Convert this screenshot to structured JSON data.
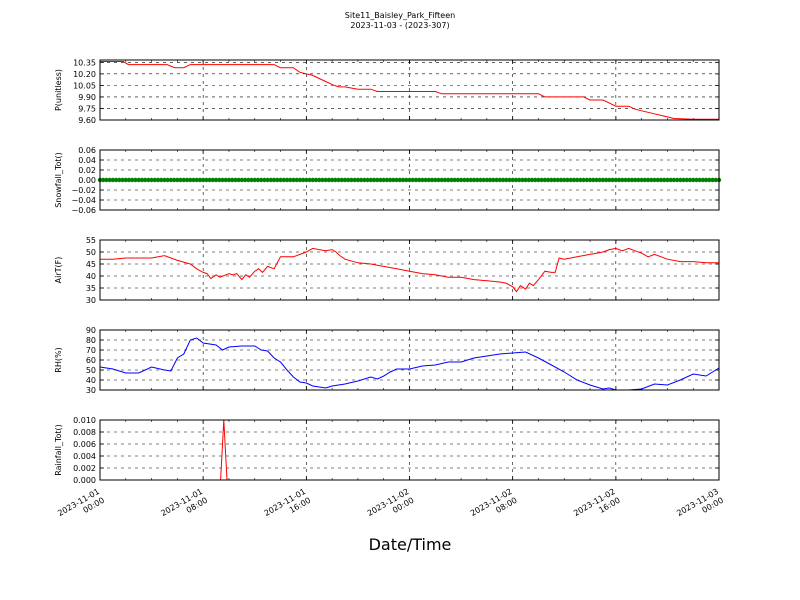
{
  "title_line1": "Site11_Baisley_Park_Fifteen",
  "title_line2": "2023-11-03 - (2023-307)",
  "xlabel": "Date/Time",
  "x_ticks": [
    {
      "x": 0,
      "label": [
        "2023-11-01",
        "00:00"
      ]
    },
    {
      "x": 8,
      "label": [
        "2023-11-01",
        "08:00"
      ]
    },
    {
      "x": 16,
      "label": [
        "2023-11-01",
        "16:00"
      ]
    },
    {
      "x": 24,
      "label": [
        "2023-11-02",
        "00:00"
      ]
    },
    {
      "x": 32,
      "label": [
        "2023-11-02",
        "08:00"
      ]
    },
    {
      "x": 40,
      "label": [
        "2023-11-02",
        "16:00"
      ]
    },
    {
      "x": 48,
      "label": [
        "2023-11-03",
        "00:00"
      ]
    }
  ],
  "chart_data": [
    {
      "type": "line",
      "ylabel": "P(unitless)",
      "ylim": [
        9.6,
        10.38
      ],
      "yticks": [
        "9.60",
        "9.75",
        "9.90",
        "10.05",
        "10.20",
        "10.35"
      ],
      "ytick_values": [
        9.6,
        9.75,
        9.9,
        10.05,
        10.2,
        10.35
      ],
      "grid": true,
      "color": "#ff0000",
      "x": [
        0,
        1.8,
        2.2,
        5.2,
        5.8,
        6.5,
        7,
        11,
        12,
        13.5,
        14,
        15,
        15.5,
        16.5,
        17,
        17.5,
        18,
        18.5,
        19,
        20,
        21,
        21.5,
        24,
        26,
        26.5,
        32,
        34,
        34.5,
        37.5,
        38,
        39,
        39.5,
        40,
        41,
        41.5,
        42,
        43,
        43.5,
        44,
        44.5,
        46,
        48
      ],
      "y": [
        10.36,
        10.36,
        10.32,
        10.32,
        10.28,
        10.28,
        10.32,
        10.32,
        10.32,
        10.32,
        10.28,
        10.28,
        10.22,
        10.18,
        10.14,
        10.1,
        10.06,
        10.03,
        10.03,
        10.0,
        10.0,
        9.97,
        9.97,
        9.97,
        9.94,
        9.94,
        9.94,
        9.9,
        9.9,
        9.86,
        9.86,
        9.82,
        9.78,
        9.78,
        9.74,
        9.72,
        9.68,
        9.66,
        9.64,
        9.62,
        9.61,
        9.61
      ]
    },
    {
      "type": "scatter",
      "ylabel": "Snowfall_Tot()",
      "ylim": [
        -0.06,
        0.06
      ],
      "yticks": [
        "−0.06",
        "−0.04",
        "−0.02",
        "0.00",
        "0.02",
        "0.04",
        "0.06"
      ],
      "ytick_values": [
        -0.06,
        -0.04,
        -0.02,
        0,
        0.02,
        0.04,
        0.06
      ],
      "grid": true,
      "color": "#008000",
      "x_range": [
        0,
        48
      ],
      "x_step": 0.25,
      "constant_y": 0
    },
    {
      "type": "line",
      "ylabel": "AirT(F)",
      "ylim": [
        30,
        55
      ],
      "yticks": [
        "30",
        "35",
        "40",
        "45",
        "50",
        "55"
      ],
      "ytick_values": [
        30,
        35,
        40,
        45,
        50,
        55
      ],
      "grid": true,
      "color": "#ff0000",
      "x": [
        0,
        1,
        2,
        3,
        4,
        5,
        6,
        7,
        7.5,
        8,
        8.3,
        8.6,
        9,
        9.3,
        10,
        10.3,
        10.6,
        11,
        11.3,
        11.6,
        12,
        12.3,
        12.6,
        13,
        13.5,
        14,
        15,
        15.5,
        16,
        16.5,
        17,
        17.5,
        18,
        18.3,
        18.6,
        19,
        20,
        21,
        22,
        23,
        24,
        25,
        26,
        27,
        28,
        29,
        30,
        31,
        31.5,
        32,
        32.3,
        32.6,
        33,
        33.3,
        33.6,
        34,
        34.5,
        35,
        35.3,
        35.6,
        36,
        37,
        38,
        38.5,
        39,
        39.5,
        40,
        40.5,
        41,
        41.5,
        42,
        42.5,
        43,
        44,
        45,
        46,
        47,
        48
      ],
      "y": [
        47,
        47,
        47.5,
        47.5,
        47.5,
        48.5,
        46.5,
        45,
        43,
        41.5,
        41,
        39,
        40.5,
        39.5,
        41,
        40.5,
        41,
        38.5,
        40.5,
        39.5,
        42,
        43,
        41.5,
        44,
        43,
        48,
        48,
        49,
        50,
        51.5,
        51,
        50.5,
        51,
        50,
        48.5,
        47,
        45.5,
        45,
        44,
        43,
        42,
        41,
        40.5,
        39.5,
        39.5,
        38.5,
        38,
        37.5,
        37,
        35.5,
        33.5,
        36,
        34.5,
        37,
        36,
        38.5,
        42,
        41.5,
        41.5,
        47.5,
        47,
        48,
        49,
        49.5,
        50,
        51,
        51.5,
        50.5,
        51.5,
        50.5,
        49.5,
        48,
        49,
        47,
        46,
        46,
        45.5,
        45.5
      ]
    },
    {
      "type": "line",
      "ylabel": "RH(%)",
      "ylim": [
        30,
        90
      ],
      "yticks": [
        "30",
        "40",
        "50",
        "60",
        "70",
        "80",
        "90"
      ],
      "ytick_values": [
        30,
        40,
        50,
        60,
        70,
        80,
        90
      ],
      "grid": true,
      "color": "#0000ff",
      "x": [
        0,
        1,
        2,
        3,
        4,
        5,
        5.5,
        6,
        6.5,
        7,
        7.5,
        8,
        9,
        9.5,
        10,
        11,
        12,
        12.5,
        13,
        13.5,
        14,
        14.5,
        15,
        15.5,
        16,
        16.5,
        17,
        17.5,
        18,
        18.5,
        19,
        20,
        21,
        21.5,
        22,
        22.5,
        23,
        24,
        25,
        26,
        27,
        28,
        29,
        30,
        31,
        32,
        33,
        34,
        35,
        36,
        37,
        38,
        39,
        39.5,
        40,
        41,
        42,
        43,
        44,
        45,
        46,
        47,
        48
      ],
      "y": [
        53,
        51,
        47,
        47,
        53,
        50,
        49,
        62,
        66,
        80,
        82,
        77,
        75,
        70,
        73,
        74,
        74,
        70,
        69,
        62,
        58,
        50,
        43,
        38,
        37,
        34,
        33,
        32,
        34,
        35,
        36,
        39,
        43,
        41,
        44,
        48,
        51,
        51,
        54,
        55,
        58,
        58,
        62,
        64,
        66,
        67,
        68,
        62,
        55,
        48,
        40,
        35,
        31,
        32,
        30,
        30,
        31,
        36,
        35,
        40,
        46,
        44,
        52
      ]
    },
    {
      "type": "line",
      "ylabel": "Rainfall_Tot()",
      "ylim": [
        0,
        0.01
      ],
      "yticks": [
        "0.000",
        "0.002",
        "0.004",
        "0.006",
        "0.008",
        "0.010"
      ],
      "ytick_values": [
        0,
        0.002,
        0.004,
        0.006,
        0.008,
        0.01
      ],
      "grid": true,
      "color": "#ff0000",
      "x": [
        0,
        9.35,
        9.6,
        9.85,
        48
      ],
      "y": [
        0,
        0,
        0.01,
        0,
        0
      ]
    }
  ]
}
